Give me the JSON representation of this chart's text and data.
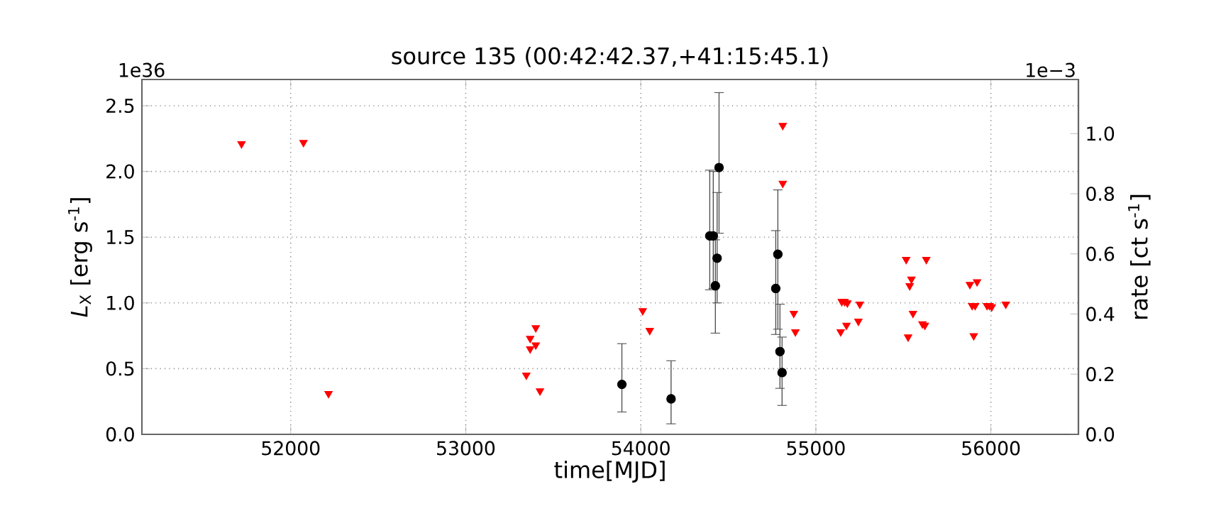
{
  "chart_data": {
    "type": "scatter",
    "title": "source 135    (00:42:42.37,+41:15:45.1)",
    "xlabel": "time[MJD]",
    "ylabel": "*L*$_{X}$ [erg s$^{-1}$]",
    "y2label": "rate [ct s$^{-1}$]",
    "annotations": [
      "1e36",
      "1e−3"
    ],
    "xlim": [
      51150,
      56500
    ],
    "xticks": [
      52000,
      53000,
      54000,
      55000,
      56000
    ],
    "ylim": [
      0,
      2.7
    ],
    "yticks": [
      {
        "value": 0,
        "label": "0.0"
      },
      {
        "value": 0.5,
        "label": "0.5"
      },
      {
        "value": 1,
        "label": "1.0"
      },
      {
        "value": 1.5,
        "label": "1.5"
      },
      {
        "value": 2,
        "label": "2.0"
      },
      {
        "value": 2.5,
        "label": "2.5"
      }
    ],
    "y2lim": [
      0,
      1.18
    ],
    "y2ticks": [
      {
        "value": 0,
        "label": "0.0"
      },
      {
        "value": 0.2,
        "label": "0.2"
      },
      {
        "value": 0.4,
        "label": "0.4"
      },
      {
        "value": 0.6,
        "label": "0.6"
      },
      {
        "value": 0.8,
        "label": "0.8"
      },
      {
        "value": 1,
        "label": "1.0"
      }
    ],
    "grid": true,
    "series": [
      {
        "color": "#ff0000",
        "marker": "triangle",
        "x": [
          51719,
          52073,
          52216,
          53346,
          53368,
          53400,
          53368,
          53400,
          53424,
          54011,
          54051,
          54811,
          54811,
          54874,
          54883,
          55142,
          55148,
          55164,
          55175,
          55180,
          55243,
          55251,
          55516,
          55527,
          55536,
          55546,
          55555,
          55609,
          55623,
          55631,
          55880,
          55893,
          55902,
          55910,
          55921,
          55978,
          55992,
          56005,
          56085
        ],
        "values": [
          2.21,
          2.22,
          0.31,
          0.45,
          0.73,
          0.81,
          0.65,
          0.68,
          0.33,
          0.94,
          0.79,
          2.35,
          1.91,
          0.92,
          0.78,
          0.78,
          1.01,
          1.01,
          0.83,
          1.0,
          0.86,
          0.99,
          1.33,
          0.74,
          1.13,
          1.18,
          0.92,
          0.84,
          0.83,
          1.33,
          1.14,
          0.98,
          0.75,
          0.98,
          1.16,
          0.98,
          0.98,
          0.97,
          0.99
        ]
      },
      {
        "color": "#000000",
        "marker": "circle",
        "x": [
          53892,
          54173,
          54394,
          54414,
          54426,
          54436,
          54447,
          54771,
          54783,
          54795,
          54807
        ],
        "values": [
          0.38,
          0.27,
          1.51,
          1.51,
          1.13,
          1.34,
          2.03,
          1.11,
          1.37,
          0.63,
          0.47
        ],
        "errors": [
          [
            0.17,
            0.69
          ],
          [
            0.08,
            0.56
          ],
          [
            1.1,
            2.01
          ],
          [
            1.11,
            2.0
          ],
          [
            0.77,
            1.48
          ],
          [
            1.0,
            1.84
          ],
          [
            1.53,
            2.6
          ],
          [
            0.76,
            1.55
          ],
          [
            0.8,
            1.86
          ],
          [
            0.35,
            0.99
          ],
          [
            0.22,
            0.74
          ]
        ]
      }
    ]
  }
}
